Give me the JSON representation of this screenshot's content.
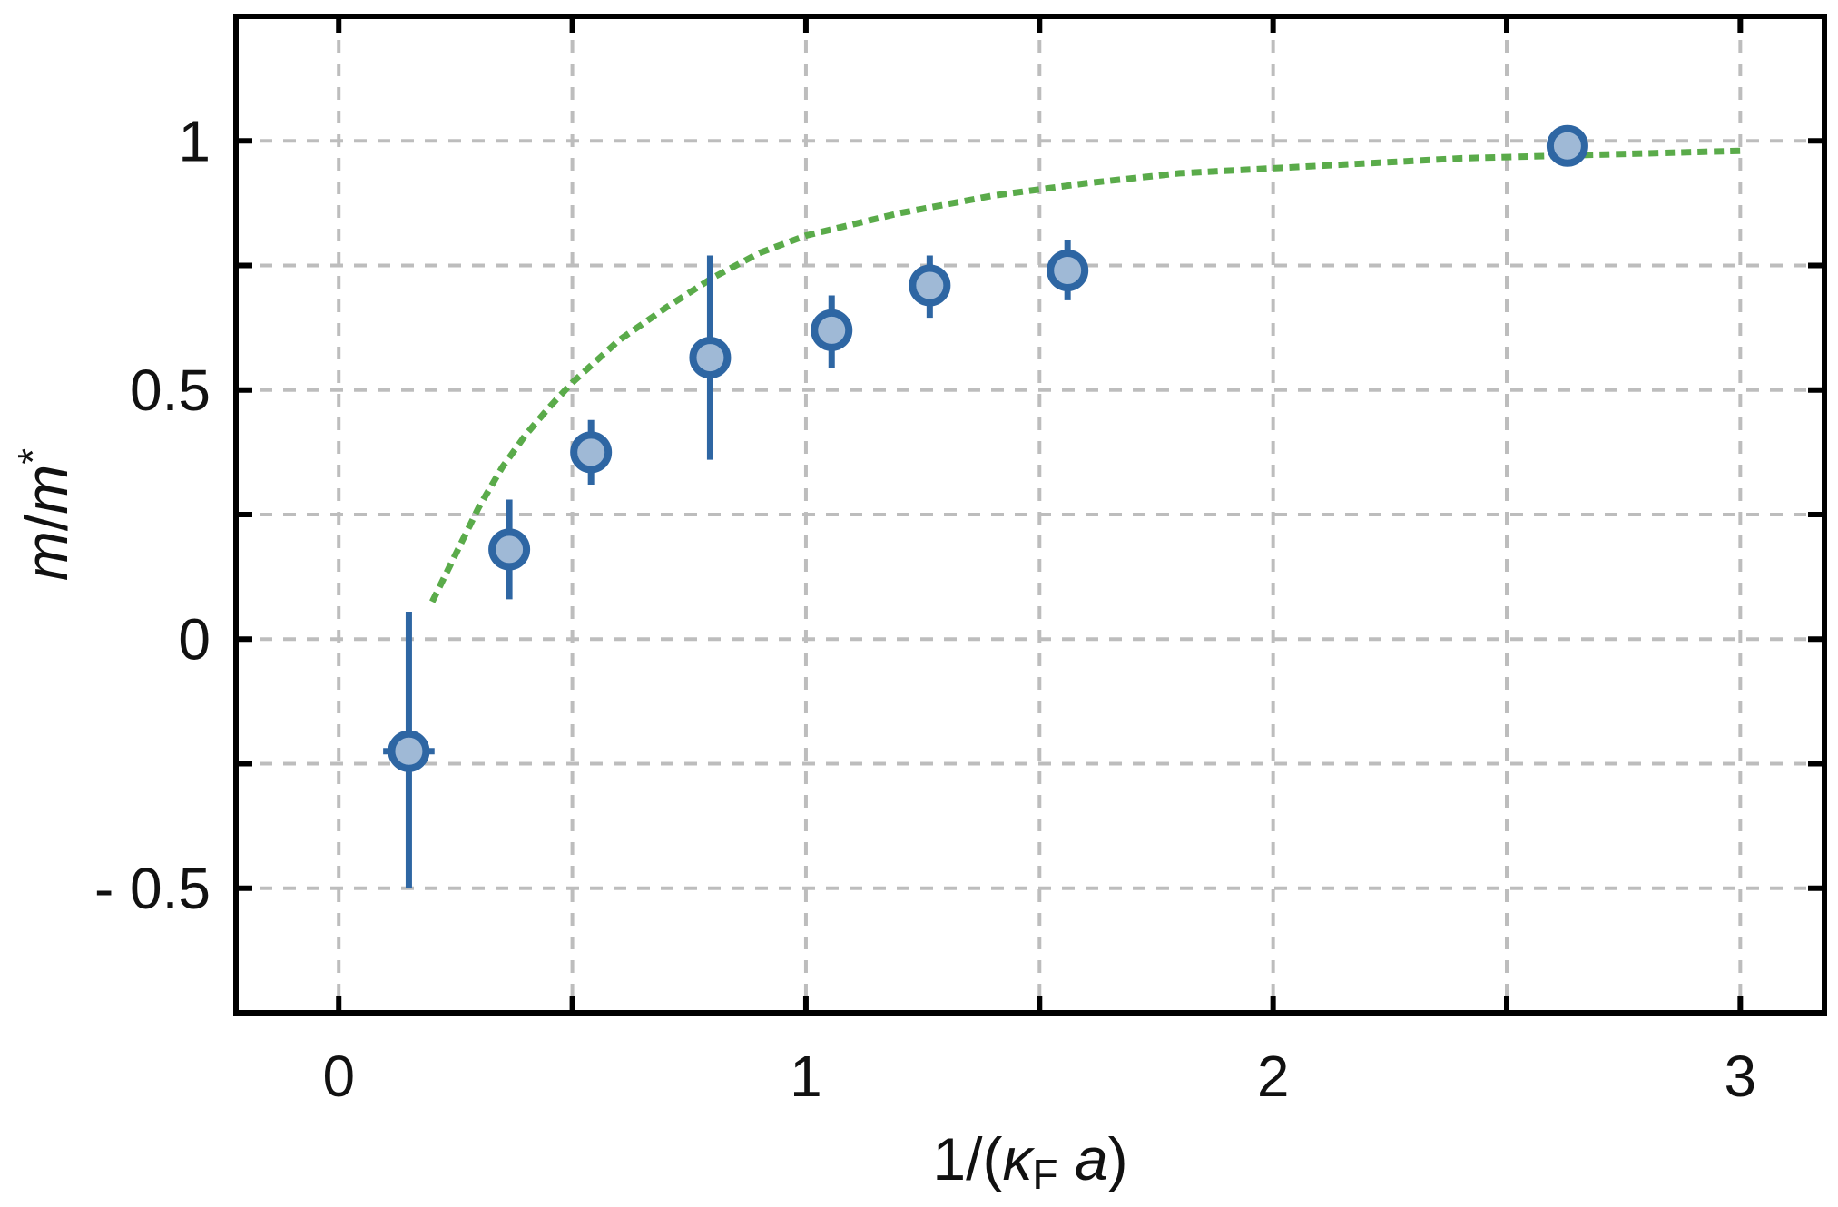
{
  "chart_data": {
    "type": "scatter",
    "xlabel_parts": [
      "1/(",
      "κ",
      "F",
      " a",
      ")"
    ],
    "ylabel_parts": [
      "m",
      "/",
      "m",
      "*"
    ],
    "xlim": [
      -0.22,
      3.18
    ],
    "ylim": [
      -0.75,
      1.25
    ],
    "x_ticks_major": [
      0,
      1,
      2,
      3
    ],
    "x_tick_labels": [
      "0",
      "1",
      "2",
      "3"
    ],
    "x_ticks_minor": [
      0.5,
      1.5,
      2.5
    ],
    "y_ticks_major": [
      -0.5,
      0,
      0.5,
      1
    ],
    "y_tick_labels": [
      "- 0.5",
      "0",
      "0.5",
      "1"
    ],
    "y_ticks_minor": [
      -0.25,
      0.25,
      0.75
    ],
    "grid": true,
    "series": [
      {
        "kind": "errorbar",
        "color": "#2e66a3",
        "fill": "#9fb9d6",
        "points": [
          {
            "x": 0.15,
            "y": -0.225,
            "ylo": -0.5,
            "yhi": 0.055,
            "xerr": 0.055
          },
          {
            "x": 0.365,
            "y": 0.18,
            "ylo": 0.08,
            "yhi": 0.28
          },
          {
            "x": 0.54,
            "y": 0.375,
            "ylo": 0.31,
            "yhi": 0.44
          },
          {
            "x": 0.795,
            "y": 0.565,
            "ylo": 0.36,
            "yhi": 0.77
          },
          {
            "x": 1.055,
            "y": 0.62,
            "ylo": 0.545,
            "yhi": 0.69
          },
          {
            "x": 1.265,
            "y": 0.71,
            "ylo": 0.645,
            "yhi": 0.77
          },
          {
            "x": 1.56,
            "y": 0.74,
            "ylo": 0.68,
            "yhi": 0.8
          },
          {
            "x": 2.63,
            "y": 0.99,
            "ylo": 0.98,
            "yhi": 1.0
          }
        ]
      },
      {
        "kind": "curve",
        "style": "dotted",
        "color": "#5aab4a",
        "x": [
          0.2,
          0.25,
          0.3,
          0.35,
          0.4,
          0.45,
          0.5,
          0.6,
          0.7,
          0.8,
          0.9,
          1.0,
          1.2,
          1.4,
          1.6,
          1.8,
          2.0,
          2.2,
          2.4,
          2.6,
          2.8,
          3.0
        ],
        "y": [
          0.075,
          0.17,
          0.265,
          0.345,
          0.41,
          0.465,
          0.515,
          0.6,
          0.665,
          0.725,
          0.775,
          0.81,
          0.855,
          0.89,
          0.915,
          0.935,
          0.945,
          0.955,
          0.965,
          0.97,
          0.975,
          0.98
        ]
      }
    ]
  }
}
